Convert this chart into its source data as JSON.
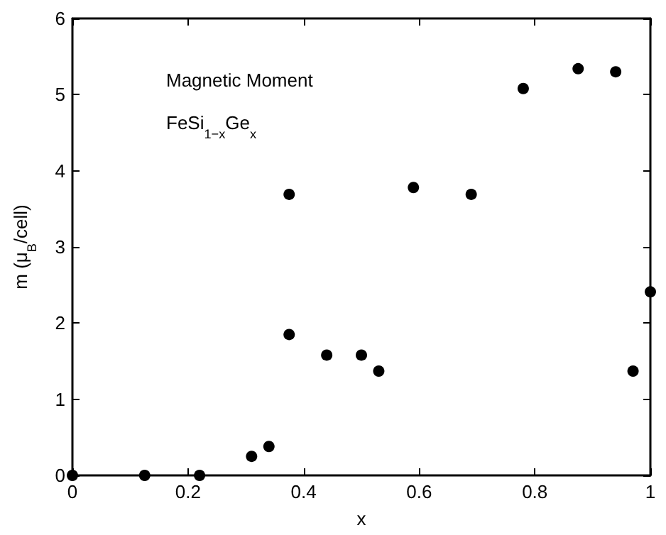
{
  "chart_data": {
    "type": "scatter",
    "xlabel": "x",
    "ylabel": "m (μ$_{B}$/cell)",
    "annotations": [
      "Magnetic Moment",
      "FeSi$_{1−x}$Ge$_{x}$"
    ],
    "x": [
      0,
      0.125,
      0.22,
      0.31,
      0.34,
      0.375,
      0.375,
      0.44,
      0.5,
      0.53,
      0.59,
      0.69,
      0.78,
      0.875,
      0.94,
      0.97,
      1.0
    ],
    "values": [
      0,
      0,
      0,
      0.25,
      0.38,
      3.69,
      1.85,
      1.58,
      1.58,
      1.37,
      3.78,
      3.69,
      5.08,
      5.34,
      5.3,
      1.37,
      2.41
    ],
    "color": "#000000",
    "marker": "circle",
    "xlim": [
      0,
      1
    ],
    "xticks": [
      0,
      0.2,
      0.4,
      0.6,
      0.8,
      1
    ],
    "ylim": [
      0,
      6
    ],
    "yticks": [
      0,
      1,
      2,
      3,
      4,
      5,
      6
    ]
  }
}
